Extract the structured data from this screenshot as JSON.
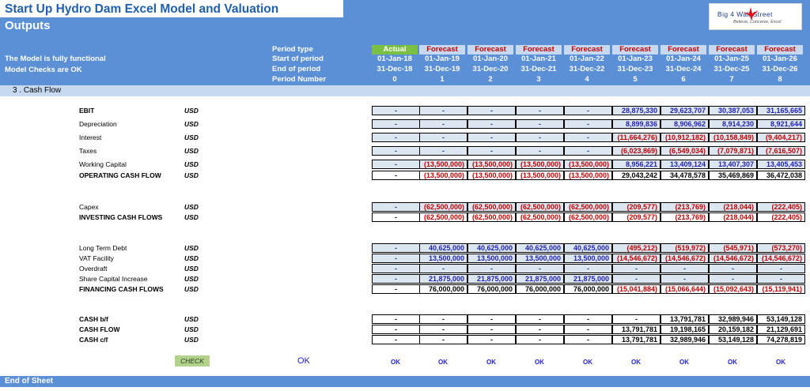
{
  "title": "Start Up Hydro Dam Excel Model and Valuation",
  "subtitle": "Outputs",
  "logo": {
    "name": "Big 4 Wall Street",
    "tagline": "Believe, Conceive, Excel",
    "icon": "red-eagle-icon"
  },
  "status": {
    "line1": "The Model is fully functional",
    "line2": "Model Checks are OK"
  },
  "header_labels": {
    "period_type": "Period type",
    "start": "Start of period",
    "end": "End of period",
    "number": "Period Number"
  },
  "periods": [
    {
      "type": "Actual",
      "start": "01-Jan-18",
      "end": "31-Dec-18",
      "num": "0"
    },
    {
      "type": "Forecast",
      "start": "01-Jan-19",
      "end": "31-Dec-19",
      "num": "1"
    },
    {
      "type": "Forecast",
      "start": "01-Jan-20",
      "end": "31-Dec-20",
      "num": "2"
    },
    {
      "type": "Forecast",
      "start": "01-Jan-21",
      "end": "31-Dec-21",
      "num": "3"
    },
    {
      "type": "Forecast",
      "start": "01-Jan-22",
      "end": "31-Dec-22",
      "num": "4"
    },
    {
      "type": "Forecast",
      "start": "01-Jan-23",
      "end": "31-Dec-23",
      "num": "5"
    },
    {
      "type": "Forecast",
      "start": "01-Jan-24",
      "end": "31-Dec-24",
      "num": "6"
    },
    {
      "type": "Forecast",
      "start": "01-Jan-25",
      "end": "31-Dec-25",
      "num": "7"
    },
    {
      "type": "Forecast",
      "start": "01-Jan-26",
      "end": "31-Dec-26",
      "num": "8"
    }
  ],
  "section": "3 .  Cash Flow",
  "rows": [
    {
      "label": "EBIT",
      "unit": "USD",
      "bold": true,
      "kind": "input",
      "values": [
        "-",
        "-",
        "-",
        "-",
        "-",
        "28,875,330",
        "29,623,707",
        "30,387,053",
        "31,165,665"
      ]
    },
    {
      "label": "Depreciation",
      "unit": "USD",
      "bold": false,
      "kind": "input",
      "values": [
        "-",
        "-",
        "-",
        "-",
        "-",
        "8,899,836",
        "8,906,962",
        "8,914,230",
        "8,921,644"
      ]
    },
    {
      "label": "Interest",
      "unit": "USD",
      "bold": false,
      "kind": "input",
      "values": [
        "-",
        "-",
        "-",
        "-",
        "-",
        "(11,664,276)",
        "(10,912,182)",
        "(10,158,849)",
        "(9,404,217)"
      ]
    },
    {
      "label": "Taxes",
      "unit": "USD",
      "bold": false,
      "kind": "input",
      "values": [
        "-",
        "-",
        "-",
        "-",
        "-",
        "(6,023,869)",
        "(6,549,034)",
        "(7,079,871)",
        "(7,616,507)"
      ]
    },
    {
      "label": "Working Capital",
      "unit": "USD",
      "bold": false,
      "kind": "input",
      "values": [
        "-",
        "(13,500,000)",
        "(13,500,000)",
        "(13,500,000)",
        "(13,500,000)",
        "8,956,221",
        "13,409,124",
        "13,407,307",
        "13,405,453"
      ]
    },
    {
      "label": "OPERATING CASH FLOW",
      "unit": "USD",
      "bold": true,
      "kind": "calc",
      "values": [
        "-",
        "(13,500,000)",
        "(13,500,000)",
        "(13,500,000)",
        "(13,500,000)",
        "29,043,242",
        "34,478,578",
        "35,469,869",
        "36,472,038"
      ]
    },
    {
      "label": "Capex",
      "unit": "USD",
      "bold": false,
      "kind": "input",
      "values": [
        "-",
        "(62,500,000)",
        "(62,500,000)",
        "(62,500,000)",
        "(62,500,000)",
        "(209,577)",
        "(213,769)",
        "(218,044)",
        "(222,405)"
      ]
    },
    {
      "label": "INVESTING CASH FLOWS",
      "unit": "USD",
      "bold": true,
      "kind": "calc",
      "values": [
        "-",
        "(62,500,000)",
        "(62,500,000)",
        "(62,500,000)",
        "(62,500,000)",
        "(209,577)",
        "(213,769)",
        "(218,044)",
        "(222,405)"
      ]
    },
    {
      "label": "Long Term Debt",
      "unit": "USD",
      "bold": false,
      "kind": "input",
      "values": [
        "-",
        "40,625,000",
        "40,625,000",
        "40,625,000",
        "40,625,000",
        "(495,212)",
        "(519,972)",
        "(545,971)",
        "(573,270)"
      ]
    },
    {
      "label": "VAT Facility",
      "unit": "USD",
      "bold": false,
      "kind": "input",
      "values": [
        "-",
        "13,500,000",
        "13,500,000",
        "13,500,000",
        "13,500,000",
        "(14,546,672)",
        "(14,546,672)",
        "(14,546,672)",
        "(14,546,672)"
      ]
    },
    {
      "label": "Overdraft",
      "unit": "USD",
      "bold": false,
      "kind": "input",
      "values": [
        "-",
        "-",
        "-",
        "-",
        "-",
        "-",
        "-",
        "-",
        "-"
      ]
    },
    {
      "label": "Share Capital Increase",
      "unit": "USD",
      "bold": false,
      "kind": "input",
      "values": [
        "-",
        "21,875,000",
        "21,875,000",
        "21,875,000",
        "21,875,000",
        "-",
        "-",
        "-",
        "-"
      ]
    },
    {
      "label": "FINANCING CASH FLOWS",
      "unit": "USD",
      "bold": true,
      "kind": "calc",
      "values": [
        "-",
        "76,000,000",
        "76,000,000",
        "76,000,000",
        "76,000,000",
        "(15,041,884)",
        "(15,066,644)",
        "(15,092,643)",
        "(15,119,941)"
      ]
    },
    {
      "label": "CASH b/f",
      "unit": "USD",
      "bold": true,
      "kind": "calc",
      "values": [
        "-",
        "-",
        "-",
        "-",
        "-",
        "-",
        "13,791,781",
        "32,989,946",
        "53,149,128"
      ]
    },
    {
      "label": "CASH FLOW",
      "unit": "USD",
      "bold": true,
      "kind": "calc",
      "values": [
        "-",
        "-",
        "-",
        "-",
        "-",
        "13,791,781",
        "19,198,165",
        "20,159,182",
        "21,129,691"
      ]
    },
    {
      "label": "CASH c/f",
      "unit": "USD",
      "bold": true,
      "kind": "calc",
      "values": [
        "-",
        "-",
        "-",
        "-",
        "-",
        "13,791,781",
        "32,989,946",
        "53,149,128",
        "74,278,819"
      ]
    }
  ],
  "check": {
    "button_label": "CHECK",
    "main_status": "OK",
    "statuses": [
      "OK",
      "OK",
      "OK",
      "OK",
      "OK",
      "OK",
      "OK",
      "OK",
      "OK"
    ]
  },
  "footer": "End of Sheet",
  "colors": {
    "header_blue": "#5b8fd6",
    "title_blue": "#1f5fae",
    "input_fill": "#dce6f1",
    "negative_red": "#c00000",
    "actual_green": "#7ac143"
  }
}
